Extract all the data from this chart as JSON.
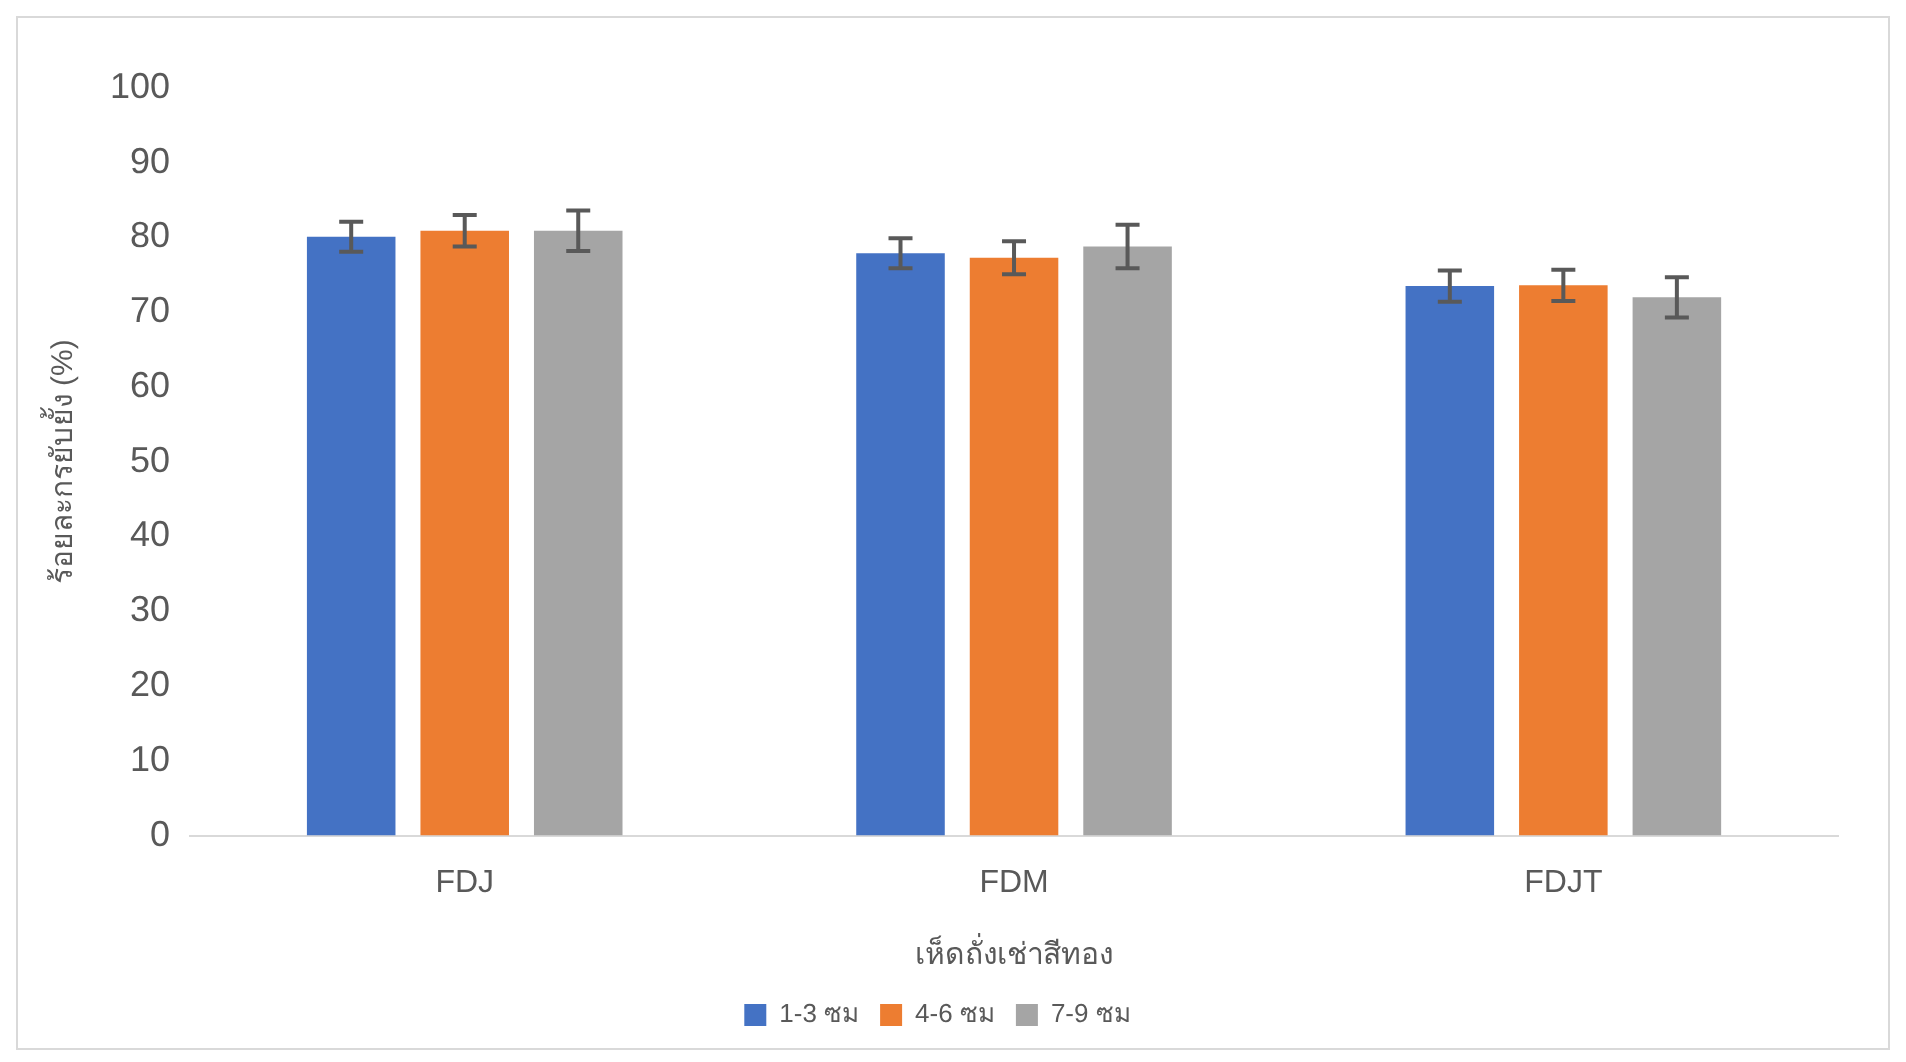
{
  "chart_data": {
    "type": "bar",
    "xlabel": "เห็ดถั่งเช่าสีทอง",
    "ylabel": "ร้อยละกรยับยั้ง (%)",
    "categories": [
      "FDJ",
      "FDM",
      "FDJT"
    ],
    "series": [
      {
        "name": "1-3 ซม",
        "color": "#4472c4",
        "values": [
          80.1,
          77.9,
          73.5
        ],
        "errors": [
          2,
          2,
          2.1
        ]
      },
      {
        "name": "4-6 ซม",
        "color": "#ed7d31",
        "values": [
          80.9,
          77.3,
          73.6
        ],
        "errors": [
          2.1,
          2.2,
          2.1
        ]
      },
      {
        "name": "7-9 ซม",
        "color": "#a5a5a5",
        "values": [
          80.9,
          78.8,
          72.0
        ],
        "errors": [
          2.7,
          2.9,
          2.7
        ]
      }
    ],
    "ylim": [
      0,
      100
    ],
    "yticks": [
      0,
      10,
      20,
      30,
      40,
      50,
      60,
      70,
      80,
      90,
      100
    ],
    "grid": false,
    "legend": "bottom"
  }
}
